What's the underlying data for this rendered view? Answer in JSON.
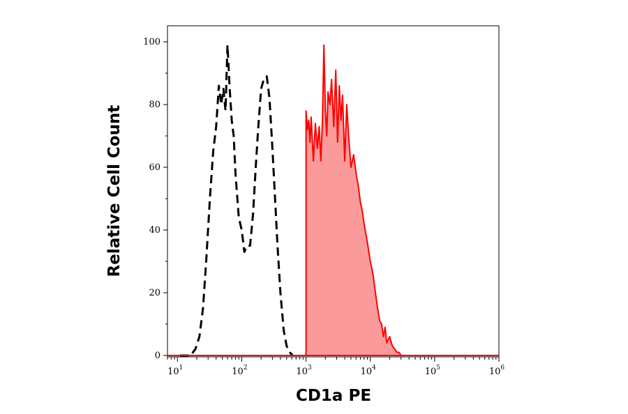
{
  "chart_data": {
    "type": "histogram",
    "xlabel": "CD1a PE",
    "ylabel": "Relative Cell Count",
    "x_scale": "log",
    "xlim": [
      7,
      1000000
    ],
    "ylim": [
      0,
      100
    ],
    "x_ticks": [
      {
        "value": 10,
        "base": "10",
        "exp": "1"
      },
      {
        "value": 100,
        "base": "10",
        "exp": "2"
      },
      {
        "value": 1000,
        "base": "10",
        "exp": "3"
      },
      {
        "value": 10000,
        "base": "10",
        "exp": "4"
      },
      {
        "value": 100000,
        "base": "10",
        "exp": "5"
      },
      {
        "value": 1000000,
        "base": "10",
        "exp": "6"
      }
    ],
    "y_ticks": [
      "0",
      "20",
      "40",
      "60",
      "80",
      "100"
    ],
    "colors": {
      "stained": "#ff0000",
      "stained_fill": "#fa9a9a",
      "control": "#000000"
    },
    "series": [
      {
        "style": "dashed-outline",
        "color": "#000000",
        "x": [
          11,
          16,
          19,
          22,
          25,
          28,
          32,
          36,
          40,
          44,
          48,
          52,
          56,
          60,
          65,
          70,
          75,
          80,
          90,
          100,
          110,
          120,
          135,
          150,
          165,
          180,
          200,
          220,
          245,
          270,
          300,
          330,
          360,
          400,
          450,
          500,
          560,
          620
        ],
        "y": [
          0,
          0,
          2,
          6,
          15,
          30,
          50,
          65,
          73,
          86,
          80,
          85,
          78,
          99,
          85,
          75,
          70,
          58,
          44,
          40,
          33,
          35,
          35,
          45,
          60,
          72,
          85,
          88,
          89,
          82,
          66,
          50,
          35,
          20,
          8,
          3,
          1,
          0
        ]
      },
      {
        "style": "filled",
        "color": "#ff0000",
        "fill": "#fa9a9a",
        "x": [
          1000,
          1000,
          1050,
          1100,
          1150,
          1200,
          1300,
          1400,
          1500,
          1600,
          1700,
          1800,
          1900,
          2000,
          2100,
          2200,
          2350,
          2500,
          2700,
          2900,
          3100,
          3300,
          3500,
          3700,
          4000,
          4300,
          4600,
          5000,
          5500,
          6000,
          6500,
          7000,
          7500,
          8000,
          9000,
          10000,
          11000,
          12000,
          13000,
          14000,
          15000,
          16000,
          17000,
          18000,
          20000,
          22000,
          24000,
          26000,
          28000,
          30000,
          34000
        ],
        "y": [
          0,
          78,
          72,
          75,
          68,
          76,
          62,
          74,
          66,
          73,
          62,
          75,
          99,
          78,
          70,
          84,
          80,
          88,
          73,
          91,
          68,
          86,
          75,
          83,
          62,
          80,
          70,
          60,
          64,
          58,
          54,
          49,
          46,
          42,
          36,
          30,
          26,
          20,
          15,
          11,
          10,
          6,
          9,
          4,
          6,
          3,
          2,
          1,
          1,
          0,
          0
        ]
      }
    ]
  }
}
